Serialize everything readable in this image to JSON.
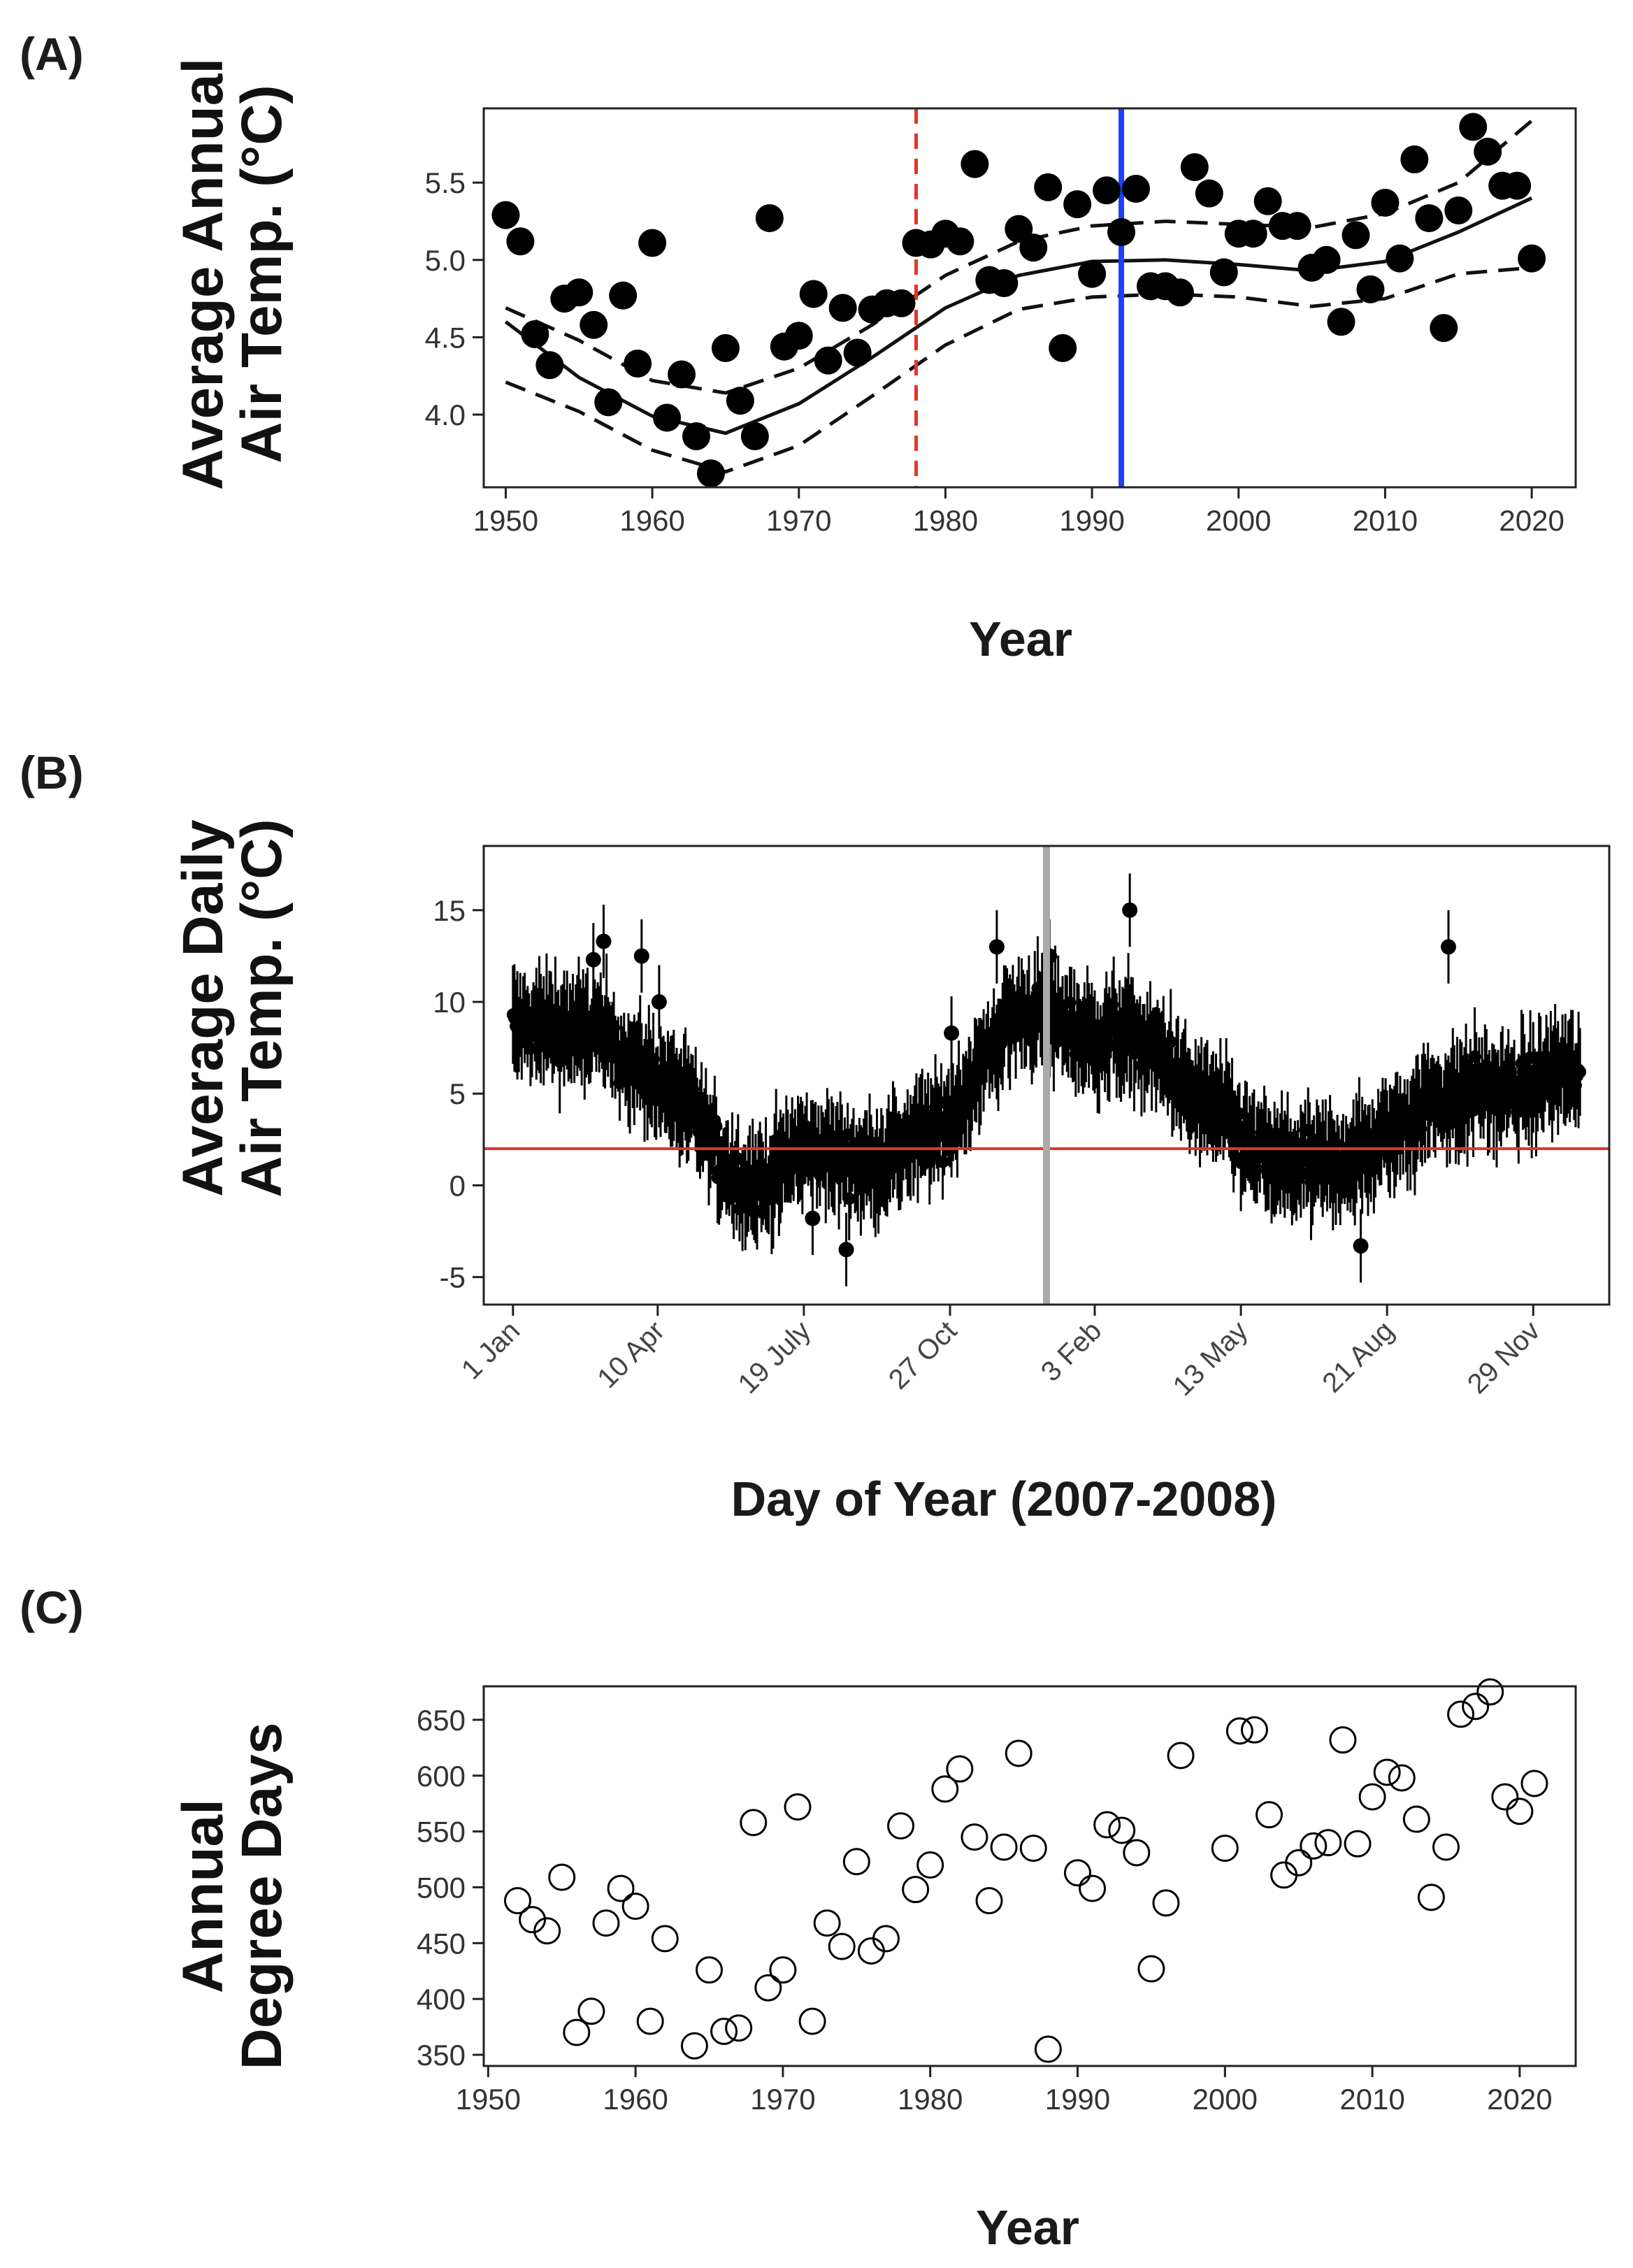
{
  "chart_data": [
    {
      "panel": "(A)",
      "type": "scatter",
      "ylabel_lines": [
        "Average Annual",
        "Air Temp. (°C)"
      ],
      "xlabel": "Year",
      "xlim": [
        1948.5,
        2023
      ],
      "ylim": [
        3.53,
        5.98
      ],
      "xticks": [
        1950,
        1960,
        1970,
        1980,
        1990,
        2000,
        2010,
        2020
      ],
      "yticks": [
        4.0,
        4.5,
        5.0,
        5.5
      ],
      "ytick_labels": [
        "4.0",
        "4.5",
        "5.0",
        "5.5"
      ],
      "grid": false,
      "points": [
        [
          1950,
          5.29
        ],
        [
          1951,
          5.12
        ],
        [
          1952,
          4.52
        ],
        [
          1953,
          4.32
        ],
        [
          1954,
          4.75
        ],
        [
          1955,
          4.79
        ],
        [
          1956,
          4.58
        ],
        [
          1957,
          4.08
        ],
        [
          1958,
          4.77
        ],
        [
          1959,
          4.33
        ],
        [
          1960,
          5.11
        ],
        [
          1961,
          3.98
        ],
        [
          1962,
          4.26
        ],
        [
          1963,
          3.86
        ],
        [
          1964,
          3.62
        ],
        [
          1965,
          4.43
        ],
        [
          1966,
          4.09
        ],
        [
          1967,
          3.86
        ],
        [
          1968,
          5.27
        ],
        [
          1969,
          4.44
        ],
        [
          1970,
          4.51
        ],
        [
          1971,
          4.78
        ],
        [
          1972,
          4.35
        ],
        [
          1973,
          4.69
        ],
        [
          1974,
          4.4
        ],
        [
          1975,
          4.68
        ],
        [
          1976,
          4.72
        ],
        [
          1977,
          4.72
        ],
        [
          1978,
          5.11
        ],
        [
          1979,
          5.1
        ],
        [
          1980,
          5.17
        ],
        [
          1981,
          5.12
        ],
        [
          1982,
          5.62
        ],
        [
          1983,
          4.87
        ],
        [
          1984,
          4.85
        ],
        [
          1985,
          5.2
        ],
        [
          1986,
          5.08
        ],
        [
          1987,
          5.47
        ],
        [
          1988,
          4.43
        ],
        [
          1989,
          5.36
        ],
        [
          1990,
          4.91
        ],
        [
          1991,
          5.45
        ],
        [
          1992,
          5.18
        ],
        [
          1993,
          5.46
        ],
        [
          1994,
          4.83
        ],
        [
          1995,
          4.83
        ],
        [
          1996,
          4.79
        ],
        [
          1997,
          5.6
        ],
        [
          1998,
          5.43
        ],
        [
          1999,
          4.92
        ],
        [
          2000,
          5.17
        ],
        [
          2001,
          5.17
        ],
        [
          2002,
          5.38
        ],
        [
          2003,
          5.22
        ],
        [
          2004,
          5.22
        ],
        [
          2005,
          4.95
        ],
        [
          2006,
          5.0
        ],
        [
          2007,
          4.6
        ],
        [
          2008,
          5.16
        ],
        [
          2009,
          4.81
        ],
        [
          2010,
          5.37
        ],
        [
          2011,
          5.01
        ],
        [
          2012,
          5.65
        ],
        [
          2013,
          5.27
        ],
        [
          2014,
          4.56
        ],
        [
          2015,
          5.32
        ],
        [
          2016,
          5.86
        ],
        [
          2017,
          5.7
        ],
        [
          2018,
          5.48
        ],
        [
          2019,
          5.48
        ],
        [
          2020,
          5.01
        ]
      ],
      "fit_line": [
        [
          1950,
          4.6
        ],
        [
          1955,
          4.24
        ],
        [
          1960,
          3.99
        ],
        [
          1965,
          3.88
        ],
        [
          1970,
          4.07
        ],
        [
          1975,
          4.37
        ],
        [
          1980,
          4.69
        ],
        [
          1985,
          4.9
        ],
        [
          1990,
          4.99
        ],
        [
          1995,
          5.0
        ],
        [
          2000,
          4.97
        ],
        [
          2005,
          4.93
        ],
        [
          2010,
          4.99
        ],
        [
          2015,
          5.18
        ],
        [
          2020,
          5.4
        ]
      ],
      "upper_band": [
        [
          1950,
          4.69
        ],
        [
          1955,
          4.48
        ],
        [
          1960,
          4.22
        ],
        [
          1965,
          4.14
        ],
        [
          1970,
          4.3
        ],
        [
          1975,
          4.58
        ],
        [
          1980,
          4.9
        ],
        [
          1985,
          5.12
        ],
        [
          1990,
          5.22
        ],
        [
          1995,
          5.25
        ],
        [
          2000,
          5.23
        ],
        [
          2005,
          5.21
        ],
        [
          2010,
          5.3
        ],
        [
          2015,
          5.5
        ],
        [
          2020,
          5.9
        ]
      ],
      "lower_band": [
        [
          1950,
          4.21
        ],
        [
          1955,
          4.02
        ],
        [
          1960,
          3.77
        ],
        [
          1965,
          3.63
        ],
        [
          1970,
          3.8
        ],
        [
          1975,
          4.12
        ],
        [
          1980,
          4.45
        ],
        [
          1985,
          4.68
        ],
        [
          1990,
          4.76
        ],
        [
          1995,
          4.78
        ],
        [
          2000,
          4.76
        ],
        [
          2005,
          4.7
        ],
        [
          2010,
          4.75
        ],
        [
          2015,
          4.91
        ],
        [
          2020,
          4.95
        ]
      ],
      "vlines": [
        {
          "x": 1978,
          "color": "#e6332a",
          "dashed": true
        },
        {
          "x": 1992,
          "color": "#1f3fff",
          "dashed": false
        }
      ]
    },
    {
      "panel": "(B)",
      "type": "scatter",
      "ylabel_lines": [
        "Average Daily",
        "Air Temp. (°C)"
      ],
      "xlabel": "Day of Year (2007-2008)",
      "xlim": [
        -20,
        750
      ],
      "ylim": [
        -6.5,
        18.5
      ],
      "yticks": [
        -5,
        0,
        5,
        10,
        15
      ],
      "ytick_labels": [
        "-5",
        "0",
        "5",
        "10",
        "15"
      ],
      "xticks": [
        0,
        99,
        199,
        299,
        398,
        498,
        598,
        698
      ],
      "xtick_labels": [
        "1 Jan",
        "10 Apr",
        "19 July",
        "27 Oct",
        "3 Feb",
        "13 May",
        "21 Aug",
        "29 Nov"
      ],
      "grid": false,
      "hline": {
        "y": 2,
        "color": "#e6332a"
      },
      "vline": {
        "x": 365,
        "color": "#aaaaaa"
      },
      "daily_means": [
        [
          0,
          8.6
        ],
        [
          14,
          8.6
        ],
        [
          28,
          8.7
        ],
        [
          42,
          8.3
        ],
        [
          56,
          8.5
        ],
        [
          70,
          7.4
        ],
        [
          84,
          6.5
        ],
        [
          98,
          5.8
        ],
        [
          112,
          5.0
        ],
        [
          126,
          3.7
        ],
        [
          140,
          1.6
        ],
        [
          154,
          0.3
        ],
        [
          168,
          -0.1
        ],
        [
          182,
          0.9
        ],
        [
          196,
          1.9
        ],
        [
          210,
          1.8
        ],
        [
          224,
          1.5
        ],
        [
          238,
          1.0
        ],
        [
          252,
          1.5
        ],
        [
          266,
          2.0
        ],
        [
          280,
          2.7
        ],
        [
          294,
          3.1
        ],
        [
          308,
          4.8
        ],
        [
          322,
          6.6
        ],
        [
          336,
          8.7
        ],
        [
          350,
          9.4
        ],
        [
          364,
          9.2
        ],
        [
          378,
          8.9
        ],
        [
          392,
          8.0
        ],
        [
          406,
          8.1
        ],
        [
          420,
          8.5
        ],
        [
          434,
          7.3
        ],
        [
          448,
          6.8
        ],
        [
          462,
          4.8
        ],
        [
          476,
          4.5
        ],
        [
          490,
          3.4
        ],
        [
          504,
          2.0
        ],
        [
          518,
          1.3
        ],
        [
          532,
          1.2
        ],
        [
          546,
          1.1
        ],
        [
          560,
          1.1
        ],
        [
          574,
          1.6
        ],
        [
          588,
          1.9
        ],
        [
          602,
          2.9
        ],
        [
          616,
          3.8
        ],
        [
          630,
          4.7
        ],
        [
          644,
          4.7
        ],
        [
          658,
          5.4
        ],
        [
          672,
          5.1
        ],
        [
          686,
          5.0
        ],
        [
          700,
          5.5
        ],
        [
          714,
          6.3
        ],
        [
          728,
          5.9
        ]
      ],
      "extreme_points": [
        [
          55,
          12.3
        ],
        [
          62,
          13.3
        ],
        [
          88,
          12.5
        ],
        [
          100,
          10
        ],
        [
          205,
          -1.8
        ],
        [
          228,
          -3.5
        ],
        [
          300,
          8.3
        ],
        [
          331,
          13.0
        ],
        [
          367,
          12.5
        ],
        [
          422,
          15.0
        ],
        [
          580,
          -3.3
        ],
        [
          640,
          13.0
        ]
      ]
    },
    {
      "panel": "(C)",
      "type": "scatter",
      "ylabel_lines": [
        "Annual",
        "Degree Days"
      ],
      "xlabel": "Year",
      "xlim": [
        1949.7,
        2023.8
      ],
      "ylim": [
        340,
        680
      ],
      "xticks": [
        1950,
        1960,
        1970,
        1980,
        1990,
        2000,
        2010,
        2020
      ],
      "yticks": [
        350,
        400,
        450,
        500,
        550,
        600,
        650
      ],
      "grid": false,
      "points": [
        [
          1952,
          488
        ],
        [
          1953,
          471
        ],
        [
          1954,
          461
        ],
        [
          1955,
          509
        ],
        [
          1956,
          370
        ],
        [
          1957,
          389
        ],
        [
          1958,
          468
        ],
        [
          1959,
          499
        ],
        [
          1960,
          483
        ],
        [
          1961,
          380
        ],
        [
          1962,
          454
        ],
        [
          1963,
          null
        ],
        [
          1964,
          358
        ],
        [
          1965,
          426
        ],
        [
          1966,
          371
        ],
        [
          1967,
          374
        ],
        [
          1968,
          558
        ],
        [
          1969,
          410
        ],
        [
          1970,
          426
        ],
        [
          1971,
          572
        ],
        [
          1972,
          380
        ],
        [
          1973,
          468
        ],
        [
          1974,
          447
        ],
        [
          1975,
          523
        ],
        [
          1976,
          443
        ],
        [
          1977,
          454
        ],
        [
          1978,
          555
        ],
        [
          1979,
          498
        ],
        [
          1980,
          520
        ],
        [
          1981,
          588
        ],
        [
          1982,
          606
        ],
        [
          1983,
          545
        ],
        [
          1984,
          488
        ],
        [
          1985,
          536
        ],
        [
          1986,
          620
        ],
        [
          1987,
          535
        ],
        [
          1988,
          355
        ],
        [
          1989,
          null
        ],
        [
          1990,
          513
        ],
        [
          1991,
          499
        ],
        [
          1992,
          556
        ],
        [
          1993,
          551
        ],
        [
          1994,
          531
        ],
        [
          1995,
          427
        ],
        [
          1996,
          486
        ],
        [
          1997,
          618
        ],
        [
          1998,
          null
        ],
        [
          1999,
          null
        ],
        [
          2000,
          535
        ],
        [
          2001,
          640
        ],
        [
          2002,
          641
        ],
        [
          2003,
          565
        ],
        [
          2004,
          511
        ],
        [
          2005,
          522
        ],
        [
          2006,
          537
        ],
        [
          2007,
          540
        ],
        [
          2008,
          632
        ],
        [
          2009,
          539
        ],
        [
          2010,
          581
        ],
        [
          2011,
          603
        ],
        [
          2012,
          598
        ],
        [
          2013,
          561
        ],
        [
          2014,
          491
        ],
        [
          2015,
          536
        ],
        [
          2016,
          655
        ],
        [
          2017,
          662
        ],
        [
          2018,
          675
        ],
        [
          2019,
          581
        ],
        [
          2020,
          568
        ],
        [
          2021,
          593
        ]
      ]
    }
  ]
}
